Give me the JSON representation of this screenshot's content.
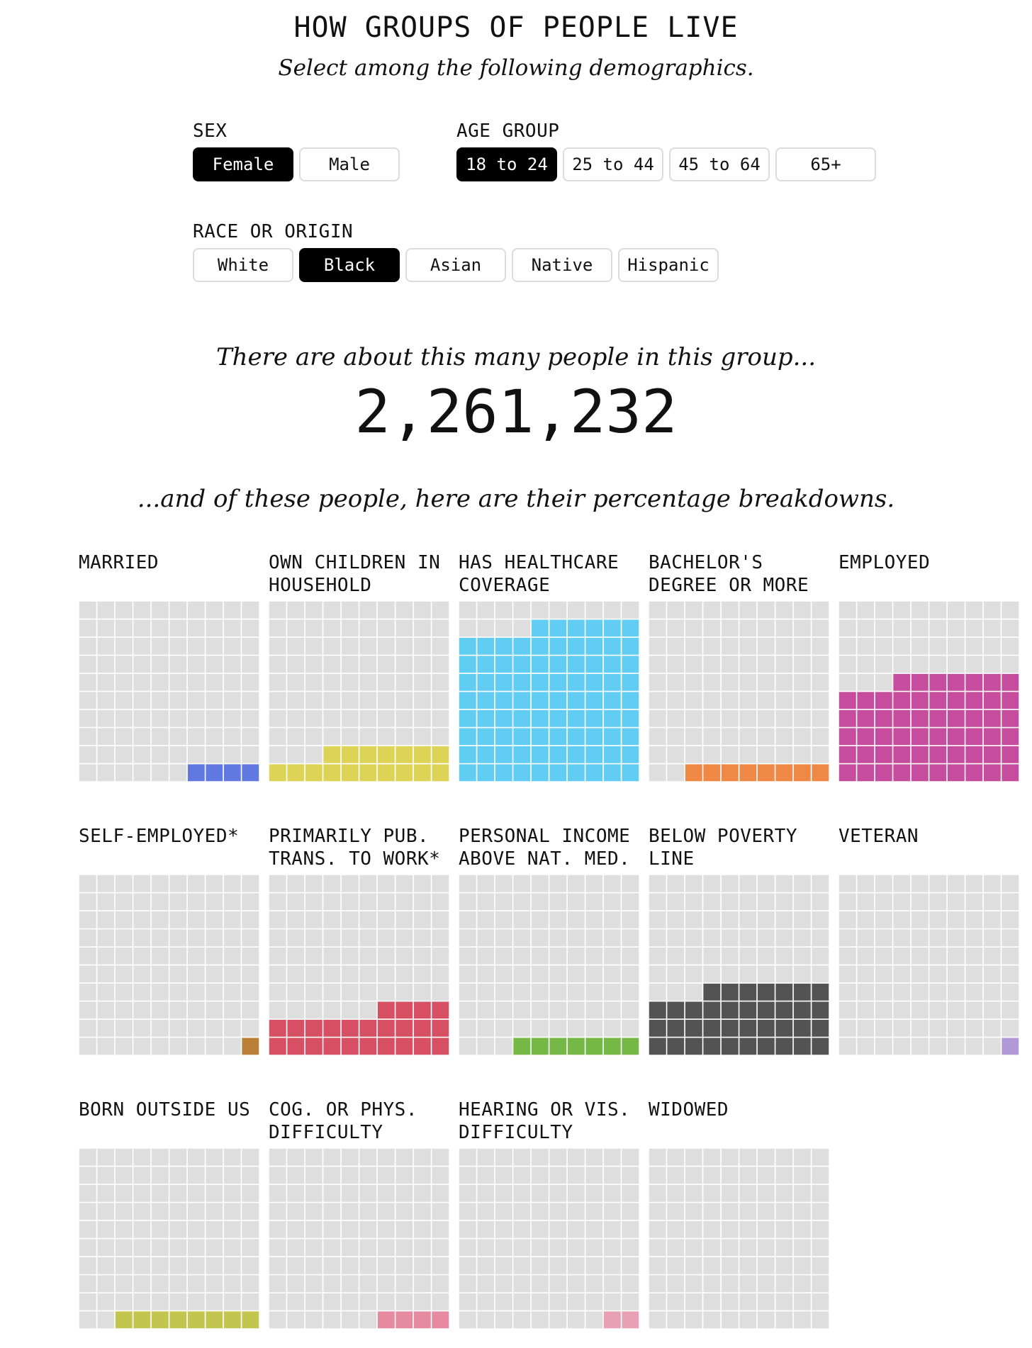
{
  "header": {
    "title": "HOW GROUPS OF PEOPLE LIVE",
    "subtitle": "Select among the following demographics."
  },
  "filters": {
    "sex": {
      "label": "SEX",
      "options": [
        "Female",
        "Male"
      ],
      "selected": "Female"
    },
    "age_group": {
      "label": "AGE GROUP",
      "options": [
        "18 to 24",
        "25 to 44",
        "45 to 64",
        "65+"
      ],
      "selected": "18 to 24"
    },
    "race": {
      "label": "RACE OR ORIGIN",
      "options": [
        "White",
        "Black",
        "Asian",
        "Native",
        "Hispanic"
      ],
      "selected": "Black"
    }
  },
  "population": {
    "intro": "There are about this many people in this group...",
    "count": "2,261,232"
  },
  "breakdown_intro": "...and of these people, here are their percentage breakdowns.",
  "empty_color": "#dedede",
  "chart_data": {
    "type": "waffle",
    "grid_size": 100,
    "items": [
      {
        "title": "MARRIED",
        "value": 4,
        "color": "#6078e0"
      },
      {
        "title": "OWN CHILDREN IN HOUSEHOLD",
        "value": 17,
        "color": "#ddd457"
      },
      {
        "title": "HAS HEALTHCARE COVERAGE",
        "value": 86,
        "color": "#62cdf3"
      },
      {
        "title": "BACHELOR'S DEGREE OR MORE",
        "value": 8,
        "color": "#ee8844"
      },
      {
        "title": "EMPLOYED",
        "value": 57,
        "color": "#c64d9e"
      },
      {
        "title": "SELF-EMPLOYED*",
        "value": 1,
        "color": "#bb8038"
      },
      {
        "title": "PRIMARILY PUB. TRANS. TO WORK*",
        "value": 24,
        "color": "#d64f62"
      },
      {
        "title": "PERSONAL INCOME ABOVE NAT. MED.",
        "value": 7,
        "color": "#76b845"
      },
      {
        "title": "BELOW POVERTY LINE",
        "value": 37,
        "color": "#535353"
      },
      {
        "title": "VETERAN",
        "value": 1,
        "color": "#b099d6"
      },
      {
        "title": "BORN OUTSIDE US",
        "value": 8,
        "color": "#c3c64e"
      },
      {
        "title": "COG. OR PHYS. DIFFICULTY",
        "value": 4,
        "color": "#e58aa0"
      },
      {
        "title": "HEARING OR VIS. DIFFICULTY",
        "value": 2,
        "color": "#e8a0b4"
      },
      {
        "title": "WIDOWED",
        "value": 0,
        "color": "#999999"
      }
    ]
  }
}
